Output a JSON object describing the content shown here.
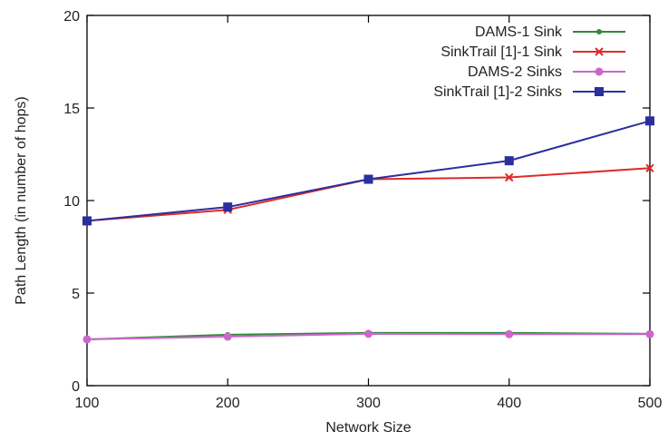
{
  "chart_data": {
    "type": "line",
    "xlabel": "Network Size",
    "ylabel": "Path Length (in number of hops)",
    "x": [
      100,
      200,
      300,
      400,
      500
    ],
    "xlim": [
      100,
      500
    ],
    "ylim": [
      0,
      20
    ],
    "xticks": [
      100,
      200,
      300,
      400,
      500
    ],
    "yticks": [
      0,
      5,
      10,
      15,
      20
    ],
    "grid": false,
    "legend_position": "top-right",
    "series": [
      {
        "name": "DAMS-1 Sink",
        "color": "#2e8b3a",
        "marker": "dot",
        "values": [
          2.5,
          2.75,
          2.85,
          2.85,
          2.8
        ]
      },
      {
        "name": "SinkTrail [1]-1 Sink",
        "color": "#e02a2a",
        "marker": "x",
        "values": [
          8.9,
          9.5,
          11.15,
          11.25,
          11.75
        ]
      },
      {
        "name": "DAMS-2 Sinks",
        "color": "#cc66cc",
        "marker": "circle",
        "values": [
          2.5,
          2.65,
          2.8,
          2.78,
          2.78
        ]
      },
      {
        "name": "SinkTrail [1]-2 Sinks",
        "color": "#2b2f9e",
        "marker": "square",
        "values": [
          8.9,
          9.65,
          11.15,
          12.15,
          14.3
        ]
      }
    ]
  }
}
